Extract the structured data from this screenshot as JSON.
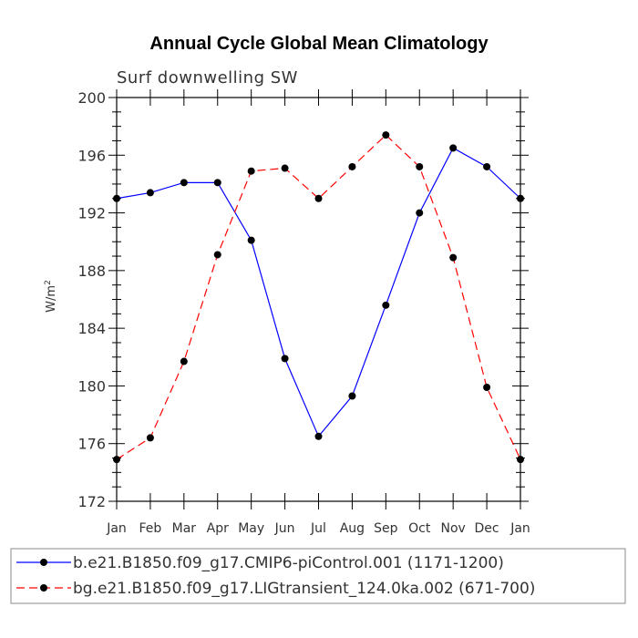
{
  "chart_data": {
    "type": "line",
    "title": "Annual Cycle Global Mean Climatology",
    "subtitle": "Surf downwelling SW",
    "ylabel": "W/m",
    "ylabel_sup": "2",
    "xlabel": "",
    "ylim": [
      172,
      200
    ],
    "yticks": [
      "172",
      "176",
      "180",
      "184",
      "188",
      "192",
      "196",
      "200"
    ],
    "categories": [
      "Jan",
      "Feb",
      "Mar",
      "Apr",
      "May",
      "Jun",
      "Jul",
      "Aug",
      "Sep",
      "Oct",
      "Nov",
      "Dec",
      "Jan"
    ],
    "series": [
      {
        "name": "b.e21.B1850.f09_g17.CMIP6-piControl.001 (1171-1200)",
        "color": "#0000ff",
        "dash": "solid",
        "values": [
          193.0,
          193.4,
          194.1,
          194.1,
          190.1,
          181.9,
          176.5,
          179.3,
          185.6,
          192.0,
          196.5,
          195.2,
          193.0
        ]
      },
      {
        "name": "bg.e21.B1850.f09_g17.LIGtransient_124.0ka.002 (671-700)",
        "color": "#ff0000",
        "dash": "dashed",
        "values": [
          174.9,
          176.4,
          181.7,
          189.1,
          194.9,
          195.1,
          193.0,
          195.2,
          197.4,
          195.2,
          188.9,
          179.9,
          174.9
        ]
      }
    ],
    "legend_position": "bottom"
  }
}
